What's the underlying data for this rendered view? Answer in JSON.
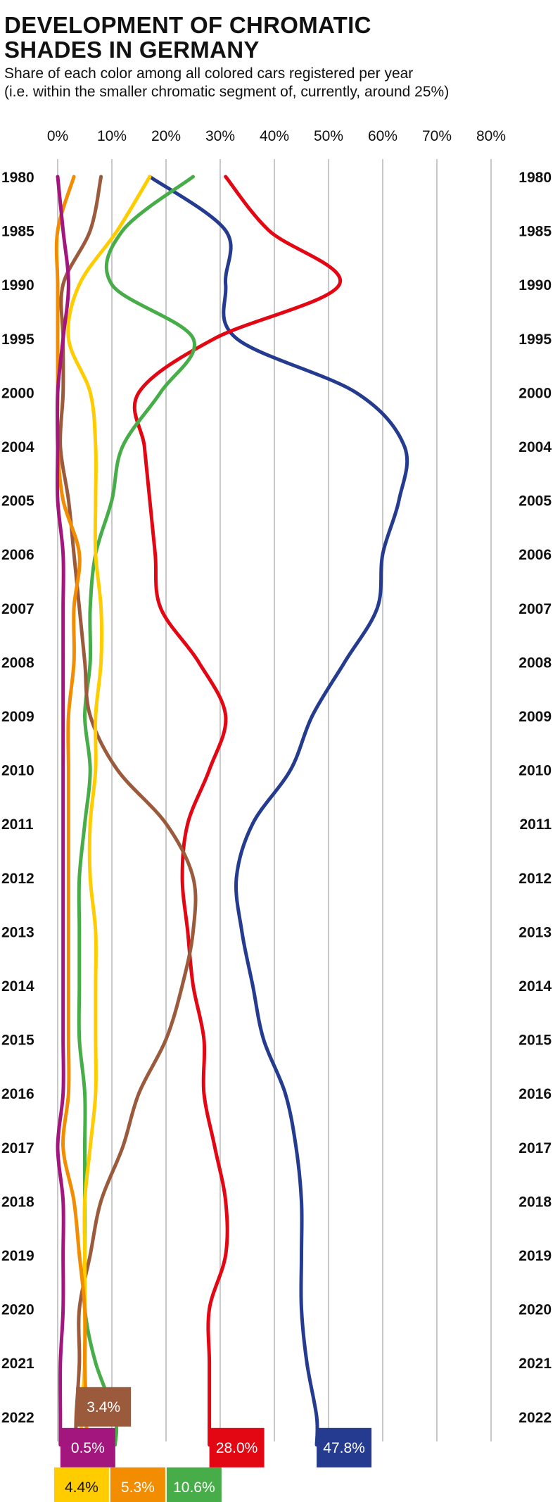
{
  "header": {
    "title_line1": "DEVELOPMENT OF CHROMATIC",
    "title_line2": "SHADES IN GERMANY",
    "subtitle_line1": "Share of each color among all colored cars registered per year",
    "subtitle_line2": "(i.e. within the smaller chromatic segment of, currently, around 25%)"
  },
  "chart_data": {
    "type": "line",
    "orientation": "vertical-time",
    "title": "DEVELOPMENT OF CHROMATIC SHADES IN GERMANY",
    "subtitle": "Share of each color among all colored cars registered per year (i.e. within the smaller chromatic segment of, currently, around 25%)",
    "xlim": [
      0,
      80
    ],
    "x_ticks": [
      "0%",
      "10%",
      "20%",
      "30%",
      "40%",
      "50%",
      "60%",
      "70%",
      "80%"
    ],
    "grid": true,
    "years": [
      "1980",
      "1985",
      "1990",
      "1995",
      "2000",
      "2004",
      "2005",
      "2006",
      "2007",
      "2008",
      "2009",
      "2010",
      "2011",
      "2012",
      "2013",
      "2014",
      "2015",
      "2016",
      "2017",
      "2018",
      "2019",
      "2020",
      "2021",
      "2022"
    ],
    "series": [
      {
        "color": "#243b8f",
        "final_label": "47.8%",
        "values": [
          17,
          31,
          31,
          33,
          55,
          64,
          63,
          60,
          59,
          53,
          47,
          43,
          36,
          33,
          34,
          36,
          38,
          42,
          44,
          45,
          45,
          45,
          46,
          47.8
        ]
      },
      {
        "color": "#e30613",
        "final_label": "28.0%",
        "values": [
          31,
          39,
          52,
          29,
          15,
          16,
          17,
          18,
          19,
          26,
          31,
          28,
          24,
          23,
          24,
          25,
          27,
          27,
          29,
          31,
          31,
          28,
          28,
          28.0
        ]
      },
      {
        "color": "#47ad48",
        "final_label": "10.6%",
        "values": [
          25,
          12,
          10,
          25,
          19,
          12,
          10,
          7,
          6,
          6,
          5,
          6,
          5,
          4,
          4,
          4,
          4,
          5,
          5,
          5,
          5,
          5,
          7,
          10.6
        ]
      },
      {
        "color": "#9b5a3c",
        "final_label": "3.4%",
        "values": [
          8,
          6,
          1,
          1,
          1,
          0.5,
          2,
          3,
          4,
          5,
          6,
          11,
          20,
          25,
          25,
          23,
          20,
          15,
          12,
          8,
          6,
          4,
          4,
          3.4
        ]
      },
      {
        "color": "#ffcc00",
        "final_label": "4.4%",
        "values": [
          17,
          11,
          4,
          2,
          6,
          7,
          7,
          7,
          8,
          8,
          7,
          7,
          6,
          6,
          7,
          7,
          7,
          7,
          6,
          5,
          5,
          5,
          5,
          4.4
        ]
      },
      {
        "color": "#f28c00",
        "final_label": "5.3%",
        "values": [
          3,
          0,
          0,
          0,
          0,
          0,
          1,
          4,
          3,
          3,
          2,
          2,
          2,
          2,
          2,
          2,
          2,
          2,
          1,
          3,
          4,
          5,
          5,
          5.3
        ]
      },
      {
        "color": "#a3167d",
        "final_label": "0.5%",
        "values": [
          0,
          1,
          2,
          1,
          0,
          0,
          0,
          1,
          1,
          1,
          1,
          1,
          1,
          1,
          1,
          1,
          1,
          1,
          0,
          1,
          1,
          1,
          0.5,
          0.5
        ]
      }
    ]
  }
}
